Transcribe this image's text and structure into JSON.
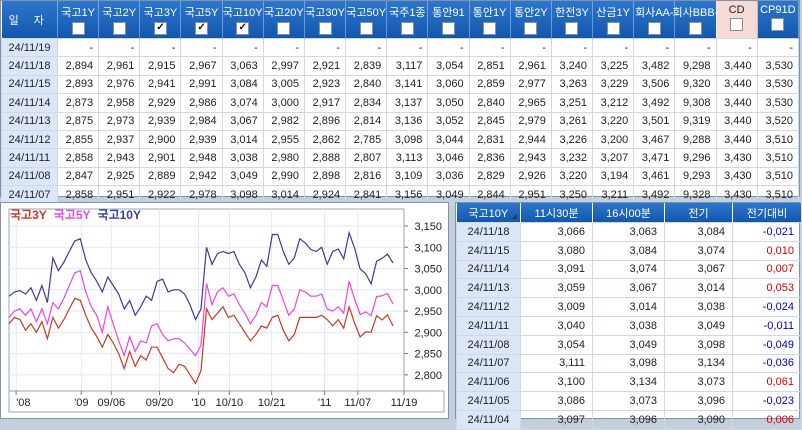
{
  "top_table": {
    "date_header": "일 자",
    "columns": [
      {
        "label": "국고1Y",
        "checked": false,
        "highlight": false
      },
      {
        "label": "국고2Y",
        "checked": false,
        "highlight": false
      },
      {
        "label": "국고3Y",
        "checked": true,
        "highlight": false
      },
      {
        "label": "국고5Y",
        "checked": true,
        "highlight": false
      },
      {
        "label": "국고10Y",
        "checked": true,
        "highlight": false
      },
      {
        "label": "국고20Y",
        "checked": false,
        "highlight": false
      },
      {
        "label": "국고30Y",
        "checked": false,
        "highlight": false
      },
      {
        "label": "국고50Y",
        "checked": false,
        "highlight": false
      },
      {
        "label": "국주1종",
        "checked": false,
        "highlight": false
      },
      {
        "label": "통안91",
        "checked": false,
        "highlight": false
      },
      {
        "label": "통안1Y",
        "checked": false,
        "highlight": false
      },
      {
        "label": "통안2Y",
        "checked": false,
        "highlight": false
      },
      {
        "label": "한전3Y",
        "checked": false,
        "highlight": false
      },
      {
        "label": "산금1Y",
        "checked": false,
        "highlight": false
      },
      {
        "label": "회사AA-",
        "checked": false,
        "highlight": false
      },
      {
        "label": "회사BBB-",
        "checked": false,
        "highlight": false
      },
      {
        "label": "CD",
        "checked": false,
        "highlight": true
      },
      {
        "label": "CP91D",
        "checked": false,
        "highlight": false
      }
    ],
    "rows": [
      {
        "date": "24/11/19",
        "values": [
          "-",
          "-",
          "-",
          "-",
          "-",
          "-",
          "-",
          "-",
          "-",
          "-",
          "-",
          "-",
          "-",
          "-",
          "-",
          "-",
          "-",
          "-"
        ]
      },
      {
        "date": "24/11/18",
        "values": [
          "2,894",
          "2,961",
          "2,915",
          "2,967",
          "3,063",
          "2,997",
          "2,921",
          "2,839",
          "3,117",
          "3,054",
          "2,851",
          "2,961",
          "3,240",
          "3,225",
          "3,482",
          "9,298",
          "3,440",
          "3,530"
        ]
      },
      {
        "date": "24/11/15",
        "values": [
          "2,893",
          "2,976",
          "2,941",
          "2,991",
          "3,084",
          "3,005",
          "2,923",
          "2,840",
          "3,141",
          "3,060",
          "2,859",
          "2,977",
          "3,263",
          "3,229",
          "3,506",
          "9,320",
          "3,440",
          "3,530"
        ]
      },
      {
        "date": "24/11/14",
        "values": [
          "2,873",
          "2,958",
          "2,929",
          "2,986",
          "3,074",
          "3,000",
          "2,917",
          "2,834",
          "3,137",
          "3,050",
          "2,840",
          "2,965",
          "3,251",
          "3,212",
          "3,492",
          "9,308",
          "3,440",
          "3,530"
        ]
      },
      {
        "date": "24/11/13",
        "values": [
          "2,875",
          "2,973",
          "2,939",
          "2,984",
          "3,067",
          "2,982",
          "2,896",
          "2,814",
          "3,136",
          "3,052",
          "2,845",
          "2,979",
          "3,261",
          "3,220",
          "3,501",
          "9,319",
          "3,440",
          "3,520"
        ]
      },
      {
        "date": "24/11/12",
        "values": [
          "2,855",
          "2,937",
          "2,900",
          "2,939",
          "3,014",
          "2,955",
          "2,862",
          "2,785",
          "3,098",
          "3,044",
          "2,831",
          "2,944",
          "3,226",
          "3,200",
          "3,467",
          "9,288",
          "3,440",
          "3,510"
        ]
      },
      {
        "date": "24/11/11",
        "values": [
          "2,858",
          "2,943",
          "2,901",
          "2,948",
          "3,038",
          "2,980",
          "2,888",
          "2,807",
          "3,113",
          "3,046",
          "2,836",
          "2,943",
          "3,232",
          "3,207",
          "3,471",
          "9,296",
          "3,430",
          "3,510"
        ]
      },
      {
        "date": "24/11/08",
        "values": [
          "2,847",
          "2,925",
          "2,889",
          "2,942",
          "3,049",
          "2,990",
          "2,898",
          "2,816",
          "3,109",
          "3,036",
          "2,829",
          "2,926",
          "3,220",
          "3,194",
          "3,461",
          "9,293",
          "3,430",
          "3,510"
        ]
      },
      {
        "date": "24/11/07",
        "values": [
          "2,858",
          "2,951",
          "2,922",
          "2,978",
          "3,098",
          "3,014",
          "2,924",
          "2,841",
          "3,156",
          "3,049",
          "2,844",
          "2,951",
          "3,250",
          "3,211",
          "3,492",
          "9,328",
          "3,430",
          "3,510"
        ]
      }
    ]
  },
  "chart_data": {
    "type": "line",
    "title": "",
    "legend_position": "top-left",
    "grid": true,
    "ylim": [
      2.762,
      3.19
    ],
    "y_ticks": [
      {
        "v": 3.15,
        "label": "3,150"
      },
      {
        "v": 3.1,
        "label": "3,100"
      },
      {
        "v": 3.05,
        "label": "3,050"
      },
      {
        "v": 3.0,
        "label": "3,000"
      },
      {
        "v": 2.95,
        "label": "2,950"
      },
      {
        "v": 2.9,
        "label": "2,900"
      },
      {
        "v": 2.85,
        "label": "2,850"
      },
      {
        "v": 2.8,
        "label": "2,800"
      }
    ],
    "x_labels": [
      {
        "label": "'08",
        "pos": 0.018
      },
      {
        "label": "'09",
        "pos": 0.183
      },
      {
        "label": "09/06",
        "pos": 0.259
      },
      {
        "label": "09/20",
        "pos": 0.381
      },
      {
        "label": "'10",
        "pos": 0.48
      },
      {
        "label": "10/10",
        "pos": 0.558
      },
      {
        "label": "10/21",
        "pos": 0.665
      },
      {
        "label": "'11",
        "pos": 0.799
      },
      {
        "label": "11/07",
        "pos": 0.883
      },
      {
        "label": "11/19",
        "pos": 1.0
      }
    ],
    "series": [
      {
        "name": "국고3Y",
        "color": "#c83825",
        "values": [
          2.92,
          2.935,
          2.93,
          2.905,
          2.92,
          2.9,
          2.925,
          2.885,
          2.935,
          2.91,
          2.93,
          2.955,
          2.98,
          2.975,
          2.94,
          2.91,
          2.89,
          2.865,
          2.895,
          2.875,
          2.85,
          2.815,
          2.855,
          2.82,
          2.845,
          2.835,
          2.865,
          2.865,
          2.84,
          2.815,
          2.805,
          2.825,
          2.82,
          2.8,
          2.78,
          2.81,
          2.955,
          2.93,
          2.945,
          2.96,
          2.935,
          2.94,
          2.92,
          2.9,
          2.88,
          2.895,
          2.915,
          2.91,
          2.935,
          2.94,
          2.905,
          2.88,
          2.895,
          2.935,
          2.935,
          2.935,
          2.935,
          2.94,
          2.93,
          2.915,
          2.93,
          2.91,
          2.96,
          2.922,
          2.889,
          2.901,
          2.9,
          2.939,
          2.929,
          2.941,
          2.915
        ]
      },
      {
        "name": "국고5Y",
        "color": "#ee44dd",
        "values": [
          2.935,
          2.95,
          2.955,
          2.94,
          2.955,
          2.925,
          2.955,
          2.92,
          2.97,
          2.955,
          2.98,
          3.01,
          3.04,
          3.045,
          2.995,
          2.96,
          2.94,
          2.9,
          2.96,
          2.92,
          2.88,
          2.845,
          2.89,
          2.855,
          2.88,
          2.875,
          2.915,
          2.92,
          2.895,
          2.88,
          2.885,
          2.885,
          2.875,
          2.86,
          2.845,
          2.87,
          3.015,
          2.965,
          2.995,
          3.005,
          2.985,
          2.99,
          2.965,
          2.945,
          2.92,
          2.94,
          2.97,
          2.96,
          3.01,
          3.01,
          2.975,
          2.94,
          2.955,
          3.0,
          2.995,
          2.985,
          2.985,
          2.99,
          2.955,
          2.95,
          2.96,
          2.945,
          3.02,
          2.978,
          2.942,
          2.948,
          2.939,
          2.984,
          2.986,
          2.991,
          2.967
        ]
      },
      {
        "name": "국고10Y",
        "color": "#3c3c9a",
        "values": [
          2.985,
          2.995,
          2.998,
          2.99,
          3.005,
          2.975,
          3.01,
          2.97,
          3.075,
          3.045,
          3.065,
          3.09,
          3.115,
          3.12,
          3.07,
          3.04,
          3.02,
          2.995,
          3.03,
          3.01,
          2.99,
          2.955,
          2.975,
          2.94,
          2.96,
          2.985,
          2.975,
          3.02,
          3.025,
          2.995,
          3.0,
          3.0,
          2.99,
          2.965,
          2.93,
          2.955,
          3.1,
          3.06,
          3.085,
          3.09,
          3.085,
          3.09,
          3.06,
          3.04,
          3.005,
          3.03,
          3.07,
          3.055,
          3.13,
          3.13,
          3.09,
          3.06,
          3.075,
          3.12,
          3.11,
          3.095,
          3.09,
          3.1,
          3.06,
          3.09,
          3.096,
          3.073,
          3.134,
          3.098,
          3.049,
          3.038,
          3.014,
          3.067,
          3.074,
          3.084,
          3.063
        ]
      }
    ]
  },
  "right_table": {
    "columns": [
      "국고10Y",
      "11시30분",
      "16시00분",
      "전기",
      "전기대비"
    ],
    "rows": [
      {
        "date": "24/11/18",
        "values": [
          "3,066",
          "3,063",
          "3,084",
          "-0,021"
        ]
      },
      {
        "date": "24/11/15",
        "values": [
          "3,080",
          "3,084",
          "3,074",
          "0,010"
        ]
      },
      {
        "date": "24/11/14",
        "values": [
          "3,091",
          "3,074",
          "3,067",
          "0,007"
        ]
      },
      {
        "date": "24/11/13",
        "values": [
          "3,059",
          "3,067",
          "3,014",
          "0,053"
        ]
      },
      {
        "date": "24/11/12",
        "values": [
          "3,009",
          "3,014",
          "3,038",
          "-0,024"
        ]
      },
      {
        "date": "24/11/11",
        "values": [
          "3,040",
          "3,038",
          "3,049",
          "-0,011"
        ]
      },
      {
        "date": "24/11/08",
        "values": [
          "3,054",
          "3,049",
          "3,098",
          "-0,049"
        ]
      },
      {
        "date": "24/11/07",
        "values": [
          "3,111",
          "3,098",
          "3,134",
          "-0,036"
        ]
      },
      {
        "date": "24/11/06",
        "values": [
          "3,100",
          "3,134",
          "3,073",
          "0,061"
        ]
      },
      {
        "date": "24/11/05",
        "values": [
          "3,086",
          "3,073",
          "3,096",
          "-0,023"
        ]
      },
      {
        "date": "24/11/04",
        "values": [
          "3,097",
          "3,096",
          "3,090",
          "0,006"
        ]
      }
    ]
  },
  "colors": {
    "header_blue": "#1a63bd",
    "highlight_pink": "#f7d9d5",
    "negative": "#0000cd",
    "positive": "#d40000"
  }
}
